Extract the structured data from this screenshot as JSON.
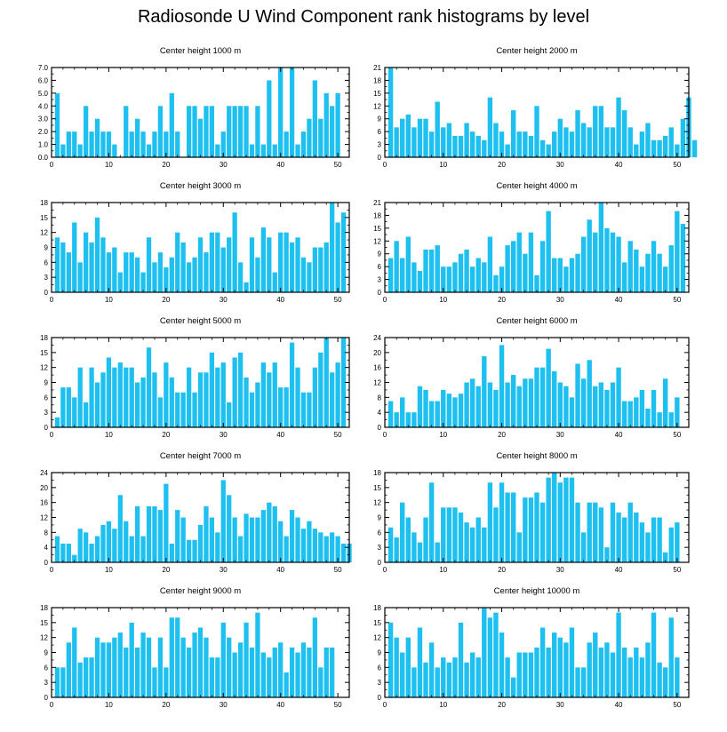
{
  "title": "Radiosonde U Wind Component rank histograms by level",
  "colors": {
    "bar": "#1ec0f0",
    "axis": "#000000",
    "background": "#ffffff"
  },
  "chart_data": [
    {
      "type": "bar",
      "title": "Center height 1000 m",
      "xlim": [
        0,
        52
      ],
      "xticks": [
        0,
        10,
        20,
        30,
        40,
        50
      ],
      "ylim": [
        0,
        7
      ],
      "yticks": [
        0,
        1,
        2,
        3,
        4,
        5,
        6,
        7
      ],
      "ytick_labels": [
        "0.0",
        "1.0",
        "2.0",
        "3.0",
        "4.0",
        "5.0",
        "6.0",
        "7.0"
      ],
      "ytick_side": "left",
      "values": [
        5,
        1,
        2,
        2,
        1,
        4,
        2,
        3,
        2,
        2,
        1,
        0,
        4,
        2,
        3,
        2,
        1,
        2,
        4,
        2,
        5,
        2,
        0,
        4,
        4,
        3,
        4,
        4,
        1,
        2,
        4,
        4,
        4,
        4,
        1,
        4,
        1,
        6,
        1,
        7,
        2,
        7,
        1,
        2,
        3,
        6,
        3,
        5,
        4,
        5
      ]
    },
    {
      "type": "bar",
      "title": "Center height 2000 m",
      "xlim": [
        0,
        52
      ],
      "xticks": [
        0,
        10,
        20,
        30,
        40,
        50
      ],
      "ylim": [
        0,
        21
      ],
      "yticks": [
        0,
        3,
        6,
        9,
        12,
        15,
        18,
        21
      ],
      "ytick_labels": [
        "0",
        "3",
        "6",
        "9",
        "12",
        "15",
        "18",
        "21"
      ],
      "ytick_side": "left",
      "values": [
        21,
        7,
        9,
        10,
        7,
        9,
        9,
        6,
        13,
        7,
        8,
        5,
        5,
        8,
        6,
        5,
        4,
        14,
        8,
        6,
        3,
        11,
        6,
        6,
        5,
        12,
        4,
        3,
        6,
        9,
        7,
        6,
        11,
        8,
        7,
        12,
        12,
        7,
        7,
        14,
        11,
        7,
        3,
        6,
        8,
        4,
        4,
        5,
        7,
        3,
        9,
        14,
        4
      ]
    },
    {
      "type": "bar",
      "title": "Center height 3000 m",
      "xlim": [
        0,
        52
      ],
      "xticks": [
        0,
        10,
        20,
        30,
        40,
        50
      ],
      "ylim": [
        0,
        18
      ],
      "yticks": [
        0,
        3,
        6,
        9,
        12,
        15,
        18
      ],
      "ytick_labels": [
        "0",
        "3",
        "6",
        "9",
        "12",
        "15",
        "18"
      ],
      "ytick_side": "left",
      "values": [
        11,
        10,
        8,
        14,
        6,
        12,
        10,
        15,
        11,
        8,
        9,
        4,
        8,
        8,
        7,
        4,
        11,
        6,
        8,
        5,
        7,
        12,
        10,
        6,
        7,
        11,
        8,
        12,
        12,
        9,
        11,
        16,
        6,
        2,
        11,
        7,
        13,
        11,
        4,
        12,
        12,
        10,
        11,
        7,
        6,
        9,
        9,
        10,
        18,
        14,
        16
      ]
    },
    {
      "type": "bar",
      "title": "Center height 4000 m",
      "xlim": [
        0,
        52
      ],
      "xticks": [
        0,
        10,
        20,
        30,
        40,
        50
      ],
      "ylim": [
        0,
        21
      ],
      "yticks": [
        0,
        3,
        6,
        9,
        12,
        15,
        18,
        21
      ],
      "ytick_labels": [
        "0",
        "3",
        "6",
        "9",
        "12",
        "15",
        "18",
        "21"
      ],
      "ytick_side": "left",
      "values": [
        8,
        12,
        8,
        13,
        7,
        5,
        10,
        10,
        11,
        6,
        6,
        7,
        9,
        10,
        6,
        8,
        7,
        13,
        4,
        6,
        11,
        12,
        14,
        9,
        14,
        4,
        12,
        19,
        8,
        8,
        6,
        8,
        9,
        13,
        17,
        14,
        21,
        15,
        14,
        13,
        7,
        12,
        10,
        6,
        9,
        12,
        9,
        6,
        11,
        19,
        16
      ]
    },
    {
      "type": "bar",
      "title": "Center height 5000 m",
      "xlim": [
        0,
        52
      ],
      "xticks": [
        0,
        10,
        20,
        30,
        40,
        50
      ],
      "ylim": [
        0,
        18
      ],
      "yticks": [
        0,
        3,
        6,
        9,
        12,
        15,
        18
      ],
      "ytick_labels": [
        "0",
        "3",
        "6",
        "9",
        "12",
        "15",
        "18"
      ],
      "ytick_side": "left",
      "values": [
        2,
        8,
        8,
        6,
        12,
        5,
        12,
        9,
        11,
        14,
        12,
        13,
        12,
        12,
        9,
        10,
        16,
        11,
        6,
        13,
        10,
        7,
        7,
        12,
        7,
        11,
        11,
        15,
        12,
        13,
        5,
        14,
        15,
        10,
        7,
        9,
        13,
        11,
        13,
        8,
        8,
        17,
        12,
        7,
        7,
        12,
        15,
        18,
        11,
        13,
        18
      ]
    },
    {
      "type": "bar",
      "title": "Center height 6000 m",
      "xlim": [
        0,
        52
      ],
      "xticks": [
        0,
        10,
        20,
        30,
        40,
        50
      ],
      "ylim": [
        0,
        24
      ],
      "yticks": [
        0,
        4,
        8,
        12,
        16,
        20,
        24
      ],
      "ytick_labels": [
        "0",
        "4",
        "8",
        "12",
        "16",
        "20",
        "24"
      ],
      "ytick_side": "left",
      "values": [
        7,
        4,
        8,
        4,
        4,
        11,
        10,
        7,
        7,
        10,
        9,
        8,
        9,
        12,
        13,
        11,
        19,
        12,
        10,
        22,
        12,
        14,
        11,
        13,
        13,
        16,
        16,
        21,
        15,
        12,
        11,
        8,
        17,
        13,
        18,
        11,
        12,
        10,
        12,
        16,
        7,
        7,
        8,
        10,
        5,
        10,
        4,
        13,
        4,
        8
      ]
    },
    {
      "type": "bar",
      "title": "Center height 7000 m",
      "xlim": [
        0,
        52
      ],
      "xticks": [
        0,
        10,
        20,
        30,
        40,
        50
      ],
      "ylim": [
        0,
        24
      ],
      "yticks": [
        0,
        4,
        8,
        12,
        16,
        20,
        24
      ],
      "ytick_labels": [
        "0",
        "4",
        "8",
        "12",
        "16",
        "20",
        "24"
      ],
      "ytick_side": "left",
      "values": [
        7,
        5,
        5,
        2,
        9,
        8,
        5,
        7,
        10,
        11,
        9,
        18,
        11,
        7,
        15,
        7,
        15,
        15,
        14,
        21,
        5,
        14,
        12,
        6,
        6,
        10,
        15,
        12,
        8,
        22,
        18,
        12,
        7,
        13,
        12,
        12,
        14,
        16,
        15,
        11,
        7,
        14,
        12,
        9,
        11,
        9,
        8,
        7,
        8,
        7,
        5,
        5
      ]
    },
    {
      "type": "bar",
      "title": "Center height 8000 m",
      "xlim": [
        0,
        52
      ],
      "xticks": [
        0,
        10,
        20,
        30,
        40,
        50
      ],
      "ylim": [
        0,
        18
      ],
      "yticks": [
        0,
        3,
        6,
        9,
        12,
        15,
        18
      ],
      "ytick_labels": [
        "0",
        "3",
        "6",
        "9",
        "12",
        "15",
        "18"
      ],
      "ytick_side": "left",
      "values": [
        7,
        5,
        12,
        9,
        6,
        4,
        9,
        16,
        4,
        11,
        11,
        11,
        10,
        8,
        7,
        9,
        7,
        16,
        11,
        16,
        14,
        14,
        6,
        13,
        13,
        14,
        12,
        17,
        18,
        16,
        17,
        17,
        12,
        6,
        12,
        12,
        11,
        3,
        12,
        10,
        9,
        12,
        10,
        8,
        6,
        9,
        9,
        2,
        7,
        8
      ]
    },
    {
      "type": "bar",
      "title": "Center height 9000 m",
      "xlim": [
        0,
        52
      ],
      "xticks": [
        0,
        10,
        20,
        30,
        40,
        50
      ],
      "ylim": [
        0,
        18
      ],
      "yticks": [
        0,
        3,
        6,
        9,
        12,
        15,
        18
      ],
      "ytick_labels": [
        "0",
        "3",
        "6",
        "9",
        "12",
        "15",
        "18"
      ],
      "ytick_side": "left",
      "values": [
        6,
        6,
        11,
        14,
        7,
        8,
        8,
        12,
        11,
        11,
        12,
        13,
        10,
        15,
        10,
        13,
        12,
        6,
        12,
        6,
        16,
        16,
        12,
        10,
        13,
        14,
        12,
        8,
        8,
        15,
        12,
        9,
        11,
        15,
        10,
        17,
        9,
        8,
        10,
        11,
        5,
        10,
        9,
        11,
        10,
        16,
        6,
        10,
        10
      ]
    },
    {
      "type": "bar",
      "title": "Center height 10000 m",
      "xlim": [
        0,
        52
      ],
      "xticks": [
        0,
        10,
        20,
        30,
        40,
        50
      ],
      "ylim": [
        0,
        18
      ],
      "yticks": [
        0,
        3,
        6,
        9,
        12,
        15,
        18
      ],
      "ytick_labels": [
        "0",
        "3",
        "6",
        "9",
        "12",
        "15",
        "18"
      ],
      "ytick_side": "left",
      "values": [
        15,
        12,
        9,
        12,
        6,
        14,
        7,
        11,
        6,
        8,
        7,
        8,
        15,
        7,
        9,
        8,
        18,
        16,
        17,
        13,
        8,
        4,
        9,
        9,
        9,
        10,
        14,
        10,
        13,
        12,
        11,
        14,
        6,
        6,
        11,
        13,
        10,
        11,
        9,
        17,
        10,
        8,
        10,
        8,
        11,
        17,
        7,
        6,
        16,
        8
      ]
    }
  ]
}
